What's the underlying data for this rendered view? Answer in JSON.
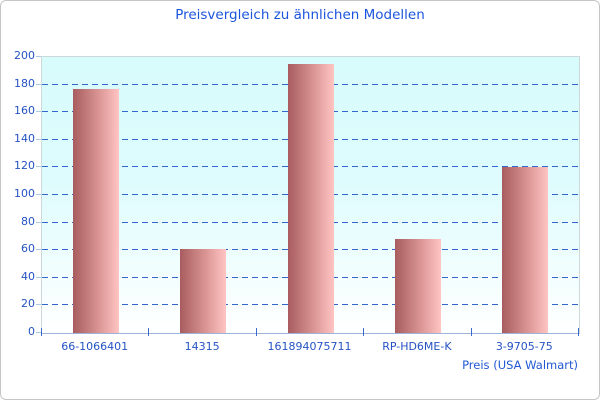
{
  "chart_data": {
    "type": "bar",
    "title": "Preisvergleich zu ähnlichen Modellen",
    "categories": [
      "66-1066401",
      "14315",
      "161894075711",
      "RP-HD6ME-K",
      "3-9705-75"
    ],
    "values": [
      177,
      61,
      195,
      68,
      120
    ],
    "xlabel": "Preis (USA Walmart)",
    "ylabel": "",
    "ylim": [
      0,
      200
    ],
    "ytick_step": 20,
    "grid": "horizontal-dashed",
    "legend": "none",
    "colors": {
      "title_text": "#1c55dd",
      "tick_text": "#2553c4",
      "xlabel_text": "#2158d4",
      "gridline": "#3366cc",
      "bar_gradient_start": "#a85c5f",
      "bar_gradient_end": "#ffc5c3",
      "plot_bg_top": "#d8fbfc",
      "plot_bg_bottom": "#ffffff",
      "plot_border": "#ccd8da",
      "axis_line": "#9db4d6"
    }
  }
}
